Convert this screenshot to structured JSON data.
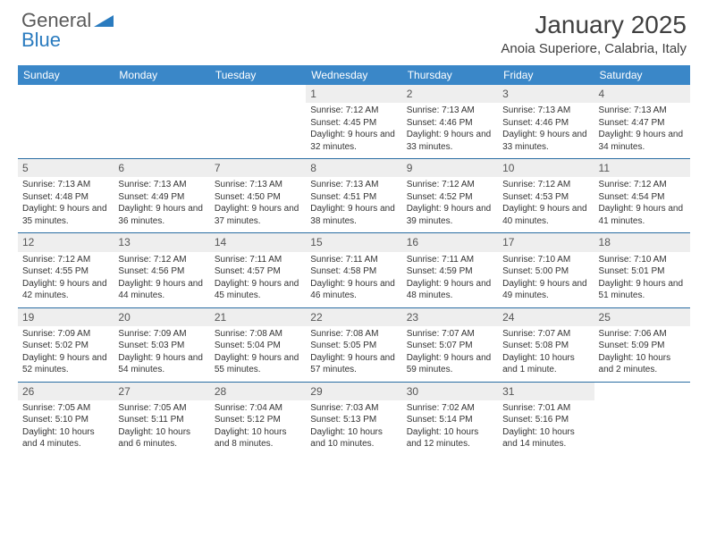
{
  "logo": {
    "word1": "General",
    "word2": "Blue"
  },
  "title": "January 2025",
  "location": "Anoia Superiore, Calabria, Italy",
  "colors": {
    "header_bg": "#3a87c8",
    "header_text": "#ffffff",
    "divider": "#2a6da3",
    "daynum_bg": "#eeeeee",
    "logo_gray": "#5a5a5a",
    "logo_blue": "#2a7bbf"
  },
  "dayHeaders": [
    "Sunday",
    "Monday",
    "Tuesday",
    "Wednesday",
    "Thursday",
    "Friday",
    "Saturday"
  ],
  "weeks": [
    [
      null,
      null,
      null,
      {
        "n": "1",
        "sr": "7:12 AM",
        "ss": "4:45 PM",
        "dl": "9 hours and 32 minutes."
      },
      {
        "n": "2",
        "sr": "7:13 AM",
        "ss": "4:46 PM",
        "dl": "9 hours and 33 minutes."
      },
      {
        "n": "3",
        "sr": "7:13 AM",
        "ss": "4:46 PM",
        "dl": "9 hours and 33 minutes."
      },
      {
        "n": "4",
        "sr": "7:13 AM",
        "ss": "4:47 PM",
        "dl": "9 hours and 34 minutes."
      }
    ],
    [
      {
        "n": "5",
        "sr": "7:13 AM",
        "ss": "4:48 PM",
        "dl": "9 hours and 35 minutes."
      },
      {
        "n": "6",
        "sr": "7:13 AM",
        "ss": "4:49 PM",
        "dl": "9 hours and 36 minutes."
      },
      {
        "n": "7",
        "sr": "7:13 AM",
        "ss": "4:50 PM",
        "dl": "9 hours and 37 minutes."
      },
      {
        "n": "8",
        "sr": "7:13 AM",
        "ss": "4:51 PM",
        "dl": "9 hours and 38 minutes."
      },
      {
        "n": "9",
        "sr": "7:12 AM",
        "ss": "4:52 PM",
        "dl": "9 hours and 39 minutes."
      },
      {
        "n": "10",
        "sr": "7:12 AM",
        "ss": "4:53 PM",
        "dl": "9 hours and 40 minutes."
      },
      {
        "n": "11",
        "sr": "7:12 AM",
        "ss": "4:54 PM",
        "dl": "9 hours and 41 minutes."
      }
    ],
    [
      {
        "n": "12",
        "sr": "7:12 AM",
        "ss": "4:55 PM",
        "dl": "9 hours and 42 minutes."
      },
      {
        "n": "13",
        "sr": "7:12 AM",
        "ss": "4:56 PM",
        "dl": "9 hours and 44 minutes."
      },
      {
        "n": "14",
        "sr": "7:11 AM",
        "ss": "4:57 PM",
        "dl": "9 hours and 45 minutes."
      },
      {
        "n": "15",
        "sr": "7:11 AM",
        "ss": "4:58 PM",
        "dl": "9 hours and 46 minutes."
      },
      {
        "n": "16",
        "sr": "7:11 AM",
        "ss": "4:59 PM",
        "dl": "9 hours and 48 minutes."
      },
      {
        "n": "17",
        "sr": "7:10 AM",
        "ss": "5:00 PM",
        "dl": "9 hours and 49 minutes."
      },
      {
        "n": "18",
        "sr": "7:10 AM",
        "ss": "5:01 PM",
        "dl": "9 hours and 51 minutes."
      }
    ],
    [
      {
        "n": "19",
        "sr": "7:09 AM",
        "ss": "5:02 PM",
        "dl": "9 hours and 52 minutes."
      },
      {
        "n": "20",
        "sr": "7:09 AM",
        "ss": "5:03 PM",
        "dl": "9 hours and 54 minutes."
      },
      {
        "n": "21",
        "sr": "7:08 AM",
        "ss": "5:04 PM",
        "dl": "9 hours and 55 minutes."
      },
      {
        "n": "22",
        "sr": "7:08 AM",
        "ss": "5:05 PM",
        "dl": "9 hours and 57 minutes."
      },
      {
        "n": "23",
        "sr": "7:07 AM",
        "ss": "5:07 PM",
        "dl": "9 hours and 59 minutes."
      },
      {
        "n": "24",
        "sr": "7:07 AM",
        "ss": "5:08 PM",
        "dl": "10 hours and 1 minute."
      },
      {
        "n": "25",
        "sr": "7:06 AM",
        "ss": "5:09 PM",
        "dl": "10 hours and 2 minutes."
      }
    ],
    [
      {
        "n": "26",
        "sr": "7:05 AM",
        "ss": "5:10 PM",
        "dl": "10 hours and 4 minutes."
      },
      {
        "n": "27",
        "sr": "7:05 AM",
        "ss": "5:11 PM",
        "dl": "10 hours and 6 minutes."
      },
      {
        "n": "28",
        "sr": "7:04 AM",
        "ss": "5:12 PM",
        "dl": "10 hours and 8 minutes."
      },
      {
        "n": "29",
        "sr": "7:03 AM",
        "ss": "5:13 PM",
        "dl": "10 hours and 10 minutes."
      },
      {
        "n": "30",
        "sr": "7:02 AM",
        "ss": "5:14 PM",
        "dl": "10 hours and 12 minutes."
      },
      {
        "n": "31",
        "sr": "7:01 AM",
        "ss": "5:16 PM",
        "dl": "10 hours and 14 minutes."
      },
      null
    ]
  ],
  "labels": {
    "sunrise": "Sunrise:",
    "sunset": "Sunset:",
    "daylight": "Daylight:"
  }
}
